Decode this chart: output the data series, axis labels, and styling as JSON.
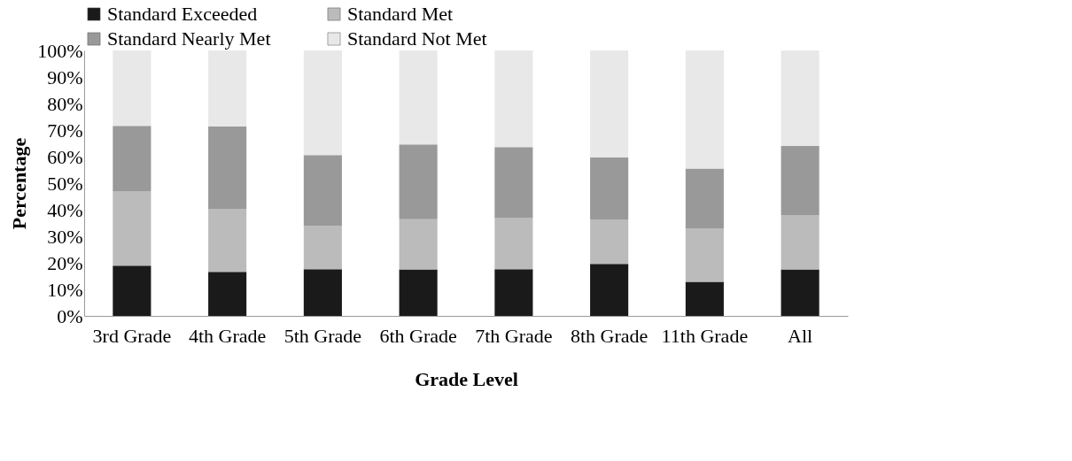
{
  "chart_data": {
    "type": "bar",
    "stacked": true,
    "xlabel": "Grade Level",
    "ylabel": "Percentage",
    "categories": [
      "3rd Grade",
      "4th Grade",
      "5th Grade",
      "6th Grade",
      "7th Grade",
      "8th Grade",
      "11th Grade",
      "All"
    ],
    "series": [
      {
        "name": "Standard Exceeded",
        "color": "#1a1a1a",
        "values": [
          18.9,
          16.6,
          17.6,
          17.5,
          17.6,
          19.6,
          12.8,
          17.5
        ]
      },
      {
        "name": "Standard Met",
        "color": "#bbbbbb",
        "values": [
          28.1,
          23.7,
          16.2,
          18.9,
          19.2,
          16.7,
          20.2,
          20.5
        ]
      },
      {
        "name": "Standard Nearly Met",
        "color": "#999999",
        "values": [
          24.6,
          31.0,
          26.8,
          28.2,
          26.8,
          23.4,
          22.5,
          26.0
        ]
      },
      {
        "name": "Standard Not Met",
        "color": "#e8e8e8",
        "values": [
          28.4,
          28.7,
          39.4,
          35.4,
          36.4,
          40.3,
          44.5,
          36.0
        ]
      }
    ],
    "ylim": [
      0,
      100
    ],
    "yticks": [
      {
        "value": 0,
        "label": "0%"
      },
      {
        "value": 10,
        "label": "10%"
      },
      {
        "value": 20,
        "label": "20%"
      },
      {
        "value": 30,
        "label": "30%"
      },
      {
        "value": 40,
        "label": "40%"
      },
      {
        "value": 50,
        "label": "50%"
      },
      {
        "value": 60,
        "label": "60%"
      },
      {
        "value": 70,
        "label": "70%"
      },
      {
        "value": 80,
        "label": "80%"
      },
      {
        "value": 90,
        "label": "90%"
      },
      {
        "value": 100,
        "label": "100%"
      }
    ],
    "grid": false,
    "legend": "top"
  }
}
